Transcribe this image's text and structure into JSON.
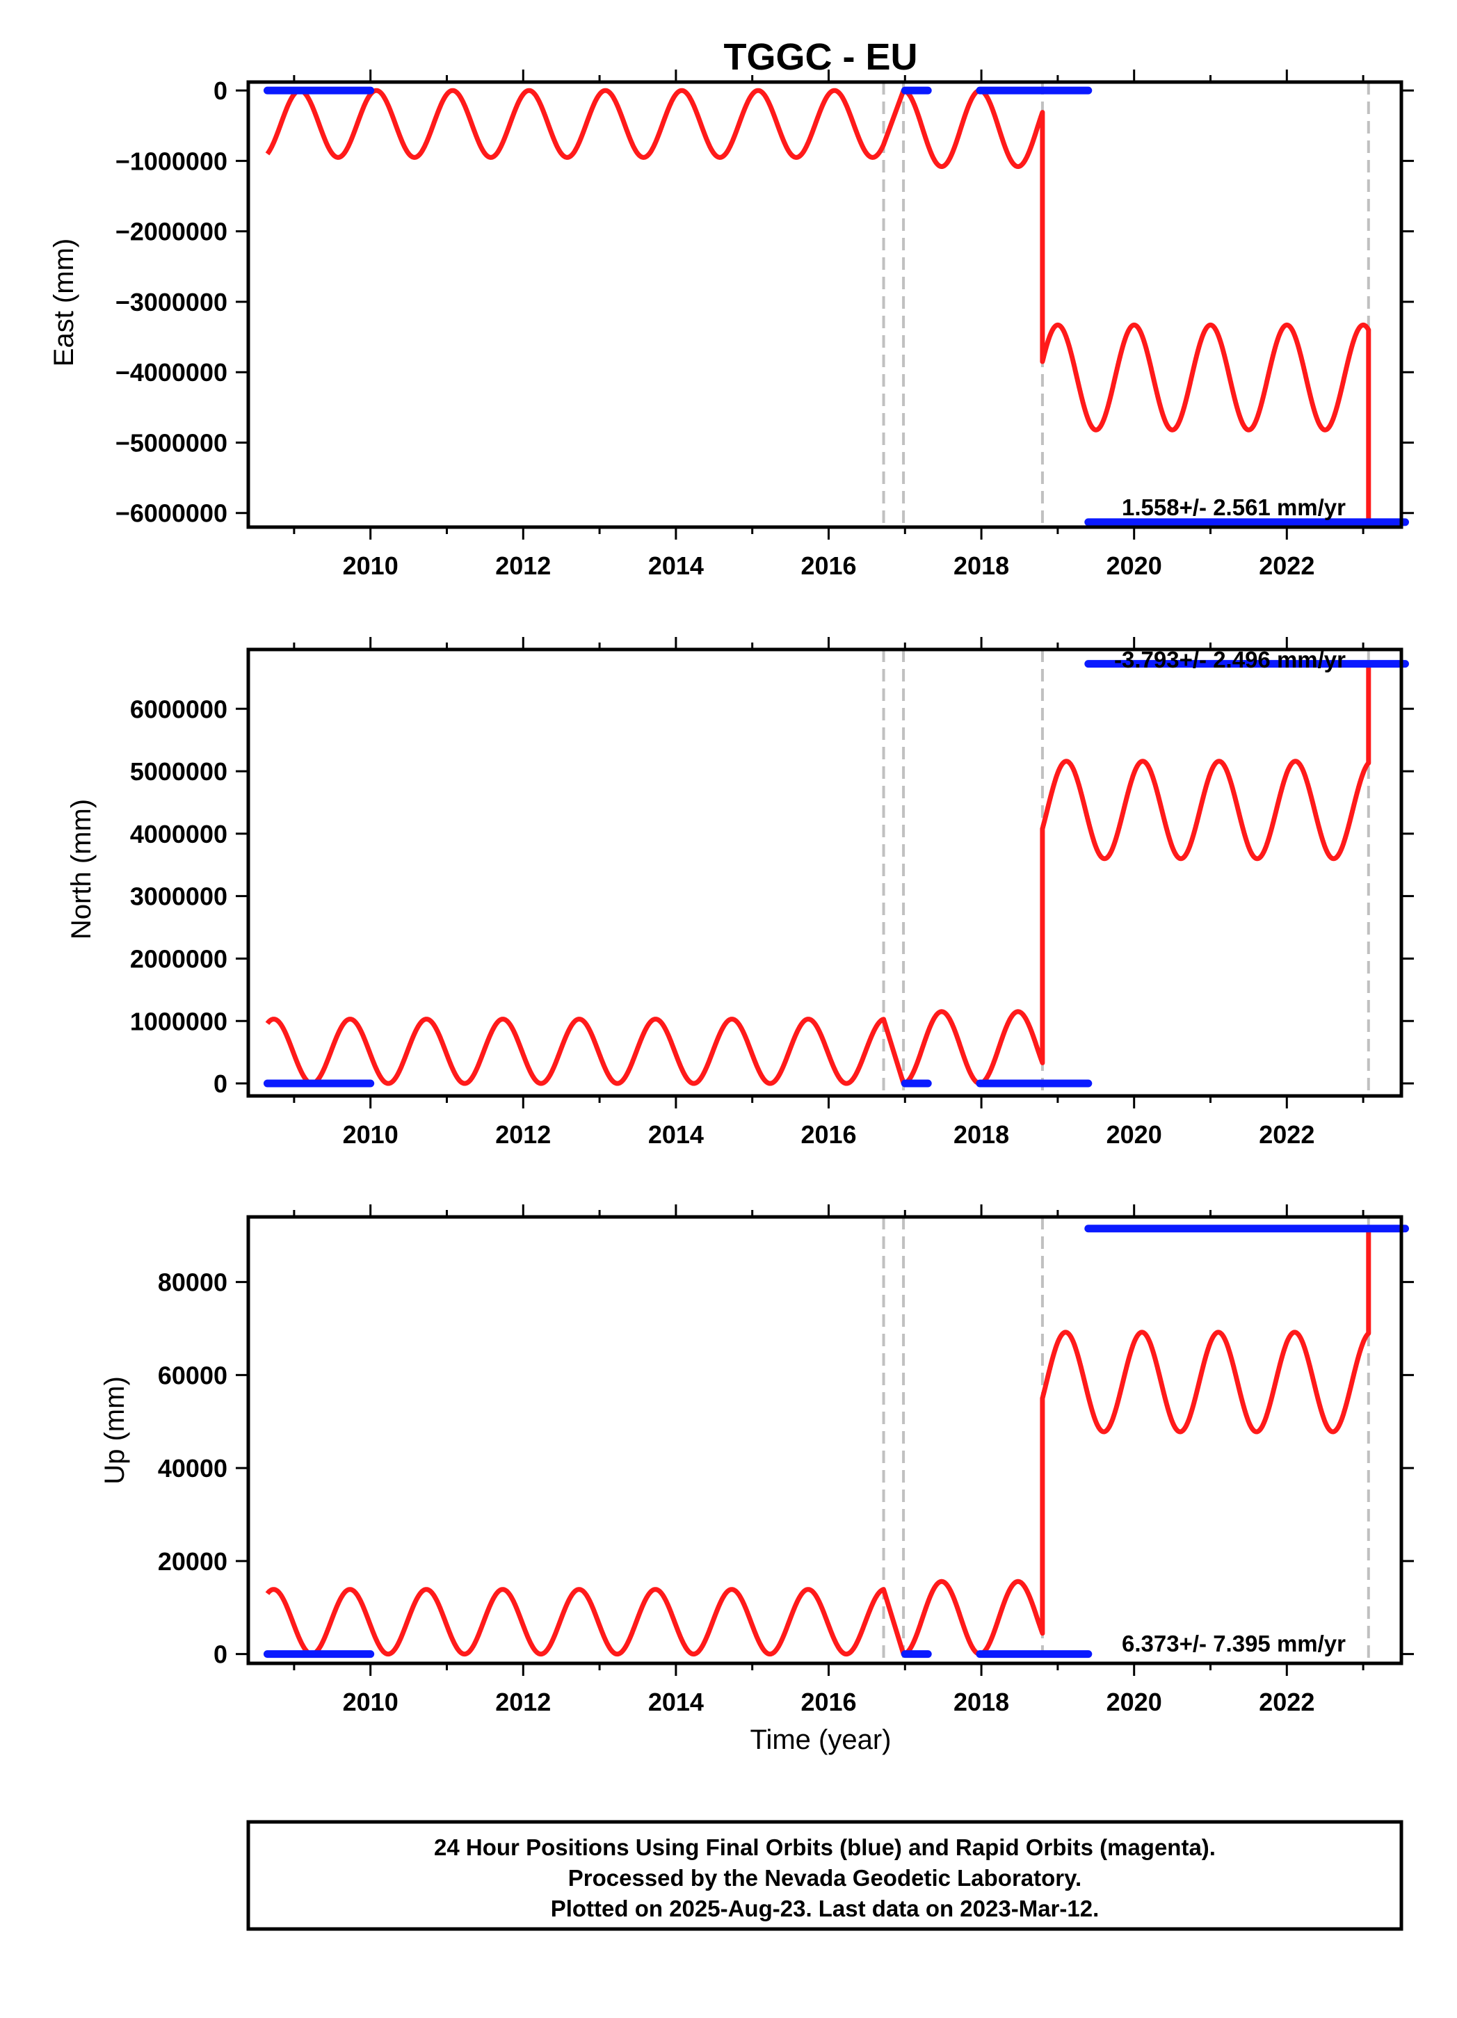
{
  "title": "TGGC - EU",
  "x_axis_label": "Time (year)",
  "colors": {
    "model": "#ff1a1a",
    "final_orbits": "#0a1aff",
    "breaks": "#c0c0c0",
    "frame": "#000000"
  },
  "footer": {
    "line1": "24 Hour Positions Using Final Orbits (blue) and Rapid Orbits (magenta).",
    "line2": "Processed by the Nevada Geodetic Laboratory.",
    "line3": "Plotted on 2025-Aug-23. Last data on 2023-Mar-12."
  },
  "chart_data": [
    {
      "type": "line",
      "component": "east",
      "ylabel": "East (mm)",
      "xlim": [
        2008.4,
        2023.5
      ],
      "ylim": [
        -6200000,
        120000
      ],
      "xticks": [
        "2010",
        "2012",
        "2014",
        "2016",
        "2018",
        "2020",
        "2022"
      ],
      "yticks": [
        "0",
        "−1000000",
        "−2000000",
        "−3000000",
        "−4000000",
        "−5000000",
        "−6000000"
      ],
      "ytick_values": [
        0,
        -1000000,
        -2000000,
        -3000000,
        -4000000,
        -5000000,
        -6000000
      ],
      "rate_text": "1.558+/- 2.561 mm/yr",
      "breaks": [
        2016.72,
        2016.98,
        2018.8,
        2023.07
      ],
      "model": {
        "segments": [
          {
            "x0": 2008.65,
            "x1": 2016.72,
            "low": -950000,
            "high": 0,
            "start": -900000
          },
          {
            "x0": 2016.98,
            "x1": 2018.8,
            "low": -1080000,
            "high": 0,
            "start": 0
          },
          {
            "x0": 2018.8,
            "x1": 2023.07,
            "low": -4820000,
            "high": -3330000,
            "start": -3850000
          }
        ],
        "step_bottom": -6100000
      },
      "final_orbits": [
        {
          "x0": 2008.65,
          "x1": 2010.0,
          "y": 0
        },
        {
          "x0": 2017.0,
          "x1": 2017.3,
          "y": 0
        },
        {
          "x0": 2017.98,
          "x1": 2019.4,
          "y": 0
        },
        {
          "x0": 2019.4,
          "x1": 2023.55,
          "y": -6130000
        }
      ]
    },
    {
      "type": "line",
      "component": "north",
      "ylabel": "North (mm)",
      "xlim": [
        2008.4,
        2023.5
      ],
      "ylim": [
        -200000,
        6950000
      ],
      "xticks": [
        "2010",
        "2012",
        "2014",
        "2016",
        "2018",
        "2020",
        "2022"
      ],
      "yticks": [
        "0",
        "1000000",
        "2000000",
        "3000000",
        "4000000",
        "5000000",
        "6000000"
      ],
      "ytick_values": [
        0,
        1000000,
        2000000,
        3000000,
        4000000,
        5000000,
        6000000
      ],
      "rate_text": "-3.793+/- 2.496 mm/yr",
      "breaks": [
        2016.72,
        2016.98,
        2018.8,
        2023.07
      ],
      "model": {
        "segments": [
          {
            "x0": 2008.65,
            "x1": 2016.72,
            "low": 0,
            "high": 1030000,
            "start": 960000
          },
          {
            "x0": 2016.98,
            "x1": 2018.8,
            "low": 0,
            "high": 1150000,
            "start": 0
          },
          {
            "x0": 2018.8,
            "x1": 2023.07,
            "low": 3600000,
            "high": 5160000,
            "start": 4080000
          }
        ],
        "step_top": 6700000
      },
      "final_orbits": [
        {
          "x0": 2008.65,
          "x1": 2010.0,
          "y": 0
        },
        {
          "x0": 2017.0,
          "x1": 2017.3,
          "y": 0
        },
        {
          "x0": 2017.98,
          "x1": 2019.4,
          "y": 0
        },
        {
          "x0": 2019.4,
          "x1": 2023.55,
          "y": 6720000
        }
      ]
    },
    {
      "type": "line",
      "component": "up",
      "ylabel": "Up (mm)",
      "xlim": [
        2008.4,
        2023.5
      ],
      "ylim": [
        -2000,
        94000
      ],
      "xticks": [
        "2010",
        "2012",
        "2014",
        "2016",
        "2018",
        "2020",
        "2022"
      ],
      "yticks": [
        "0",
        "20000",
        "40000",
        "60000",
        "80000"
      ],
      "ytick_values": [
        0,
        20000,
        40000,
        60000,
        80000
      ],
      "rate_text": "6.373+/- 7.395 mm/yr",
      "breaks": [
        2016.72,
        2016.98,
        2018.8,
        2023.07
      ],
      "model": {
        "segments": [
          {
            "x0": 2008.65,
            "x1": 2016.72,
            "low": 0,
            "high": 13900,
            "start": 13000
          },
          {
            "x0": 2016.98,
            "x1": 2018.8,
            "low": 0,
            "high": 15600,
            "start": 0
          },
          {
            "x0": 2018.8,
            "x1": 2023.07,
            "low": 47800,
            "high": 69200,
            "start": 55000
          }
        ],
        "step_top": 91000
      },
      "final_orbits": [
        {
          "x0": 2008.65,
          "x1": 2010.0,
          "y": 0
        },
        {
          "x0": 2017.0,
          "x1": 2017.3,
          "y": 0
        },
        {
          "x0": 2017.98,
          "x1": 2019.4,
          "y": 0
        },
        {
          "x0": 2019.4,
          "x1": 2023.55,
          "y": 91500
        }
      ]
    }
  ]
}
